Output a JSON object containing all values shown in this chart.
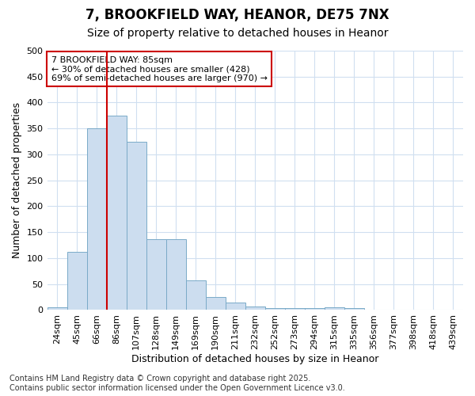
{
  "title_line1": "7, BROOKFIELD WAY, HEANOR, DE75 7NX",
  "title_line2": "Size of property relative to detached houses in Heanor",
  "xlabel": "Distribution of detached houses by size in Heanor",
  "ylabel": "Number of detached properties",
  "categories": [
    "24sqm",
    "45sqm",
    "66sqm",
    "86sqm",
    "107sqm",
    "128sqm",
    "149sqm",
    "169sqm",
    "190sqm",
    "211sqm",
    "232sqm",
    "252sqm",
    "273sqm",
    "294sqm",
    "315sqm",
    "335sqm",
    "356sqm",
    "377sqm",
    "398sqm",
    "418sqm",
    "439sqm"
  ],
  "values": [
    5,
    112,
    350,
    375,
    325,
    137,
    137,
    57,
    25,
    14,
    7,
    3,
    3,
    3,
    5,
    3,
    1,
    1,
    1,
    1,
    0
  ],
  "bar_color": "#ccddef",
  "bar_edge_color": "#7aaac8",
  "vline_color": "#cc0000",
  "vline_x_idx": 3,
  "annotation_text": "7 BROOKFIELD WAY: 85sqm\n← 30% of detached houses are smaller (428)\n69% of semi-detached houses are larger (970) →",
  "annotation_box_edge_color": "#cc0000",
  "ylim": [
    0,
    500
  ],
  "yticks": [
    0,
    50,
    100,
    150,
    200,
    250,
    300,
    350,
    400,
    450,
    500
  ],
  "background_color": "#ffffff",
  "grid_color": "#d0dff0",
  "title_fontsize": 12,
  "subtitle_fontsize": 10,
  "axis_label_fontsize": 9,
  "tick_fontsize": 8,
  "annotation_fontsize": 8,
  "footer_fontsize": 7,
  "footer_text": "Contains HM Land Registry data © Crown copyright and database right 2025.\nContains public sector information licensed under the Open Government Licence v3.0."
}
